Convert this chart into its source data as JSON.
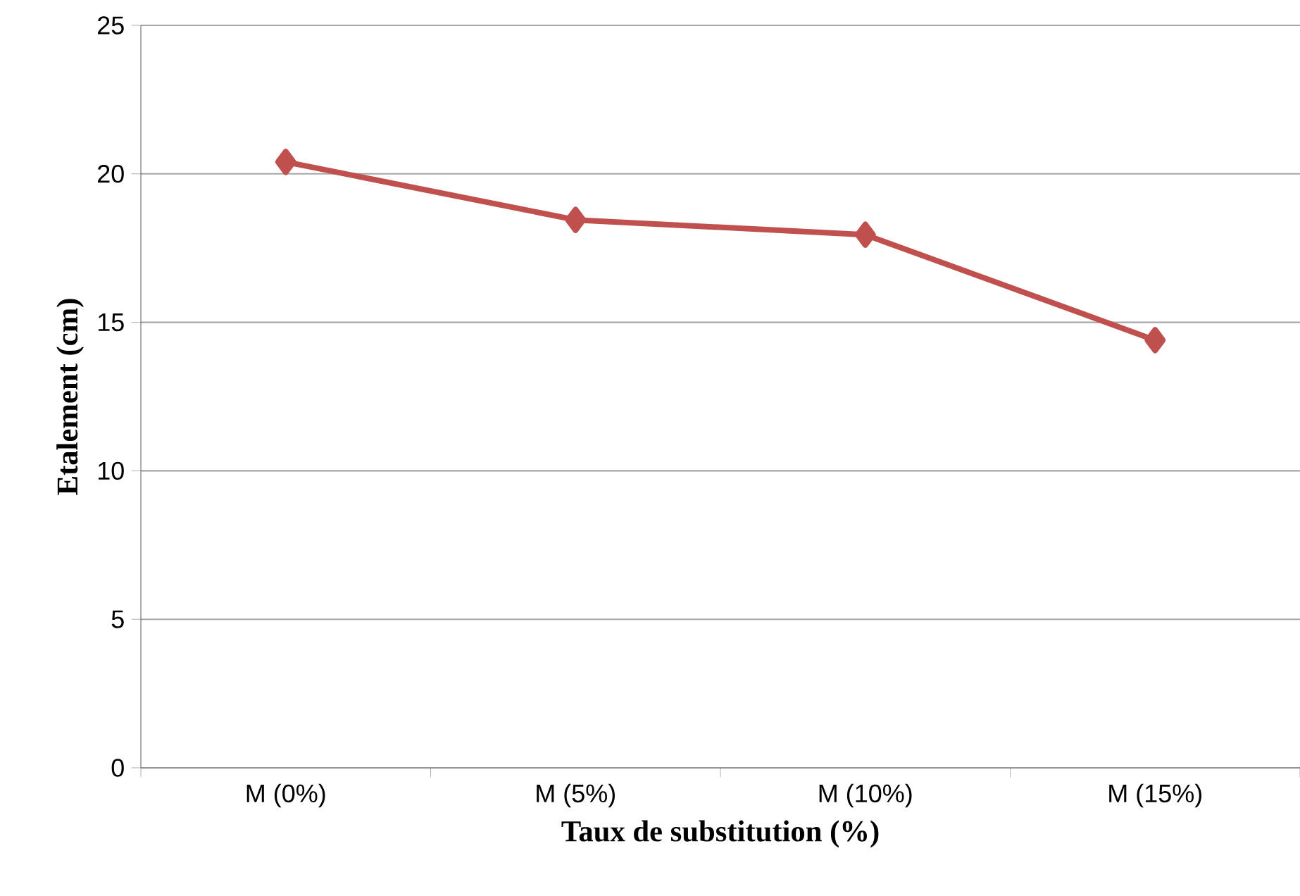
{
  "chart_data": {
    "type": "line",
    "xlabel": "Taux de substitution (%)",
    "ylabel": "Etalement (cm)",
    "categories": [
      "M (0%)",
      "M (5%)",
      "M (10%)",
      "M (15%)"
    ],
    "series": [
      {
        "color": "#c0504d",
        "values": [
          20.4,
          18.45,
          17.95,
          14.4
        ]
      }
    ],
    "ylim": [
      0,
      25
    ],
    "yticks": [
      0,
      5,
      10,
      15,
      20,
      25
    ],
    "grid": "y",
    "marker": "diamond",
    "line_style": "solid"
  }
}
